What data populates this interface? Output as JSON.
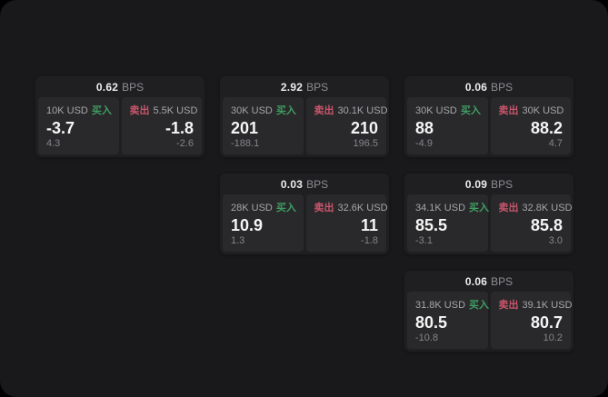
{
  "labels": {
    "bps": "BPS",
    "buy": "买入",
    "sell": "卖出"
  },
  "colors": {
    "page_background": "#000000",
    "panel_background": "#19191b",
    "card_background": "#1f1f21",
    "tile_background": "#29292b",
    "buy_green": "#3f9d62",
    "sell_red": "#c9556b",
    "value_white": "#f5f5f5",
    "label_gray": "#a6a6aa",
    "sub_gray": "#85858a",
    "bps_gray": "#8e8e93"
  },
  "cards": [
    {
      "bps": "0.62",
      "buy": {
        "amount": "10K USD",
        "value": "-3.7",
        "sub": "4.3"
      },
      "sell": {
        "amount": "5.5K USD",
        "value": "-1.8",
        "sub": "-2.6"
      }
    },
    {
      "bps": "2.92",
      "buy": {
        "amount": "30K USD",
        "value": "201",
        "sub": "-188.1"
      },
      "sell": {
        "amount": "30.1K USD",
        "value": "210",
        "sub": "196.5"
      }
    },
    {
      "bps": "0.06",
      "buy": {
        "amount": "30K USD",
        "value": "88",
        "sub": "-4.9"
      },
      "sell": {
        "amount": "30K USD",
        "value": "88.2",
        "sub": "4.7"
      }
    },
    {
      "bps": "0.03",
      "buy": {
        "amount": "28K USD",
        "value": "10.9",
        "sub": "1.3"
      },
      "sell": {
        "amount": "32.6K USD",
        "value": "11",
        "sub": "-1.8"
      }
    },
    {
      "bps": "0.09",
      "buy": {
        "amount": "34.1K USD",
        "value": "85.5",
        "sub": "-3.1"
      },
      "sell": {
        "amount": "32.8K USD",
        "value": "85.8",
        "sub": "3.0"
      }
    },
    {
      "bps": "0.06",
      "buy": {
        "amount": "31.8K USD",
        "value": "80.5",
        "sub": "-10.8"
      },
      "sell": {
        "amount": "39.1K USD",
        "value": "80.7",
        "sub": "10.2"
      }
    }
  ]
}
